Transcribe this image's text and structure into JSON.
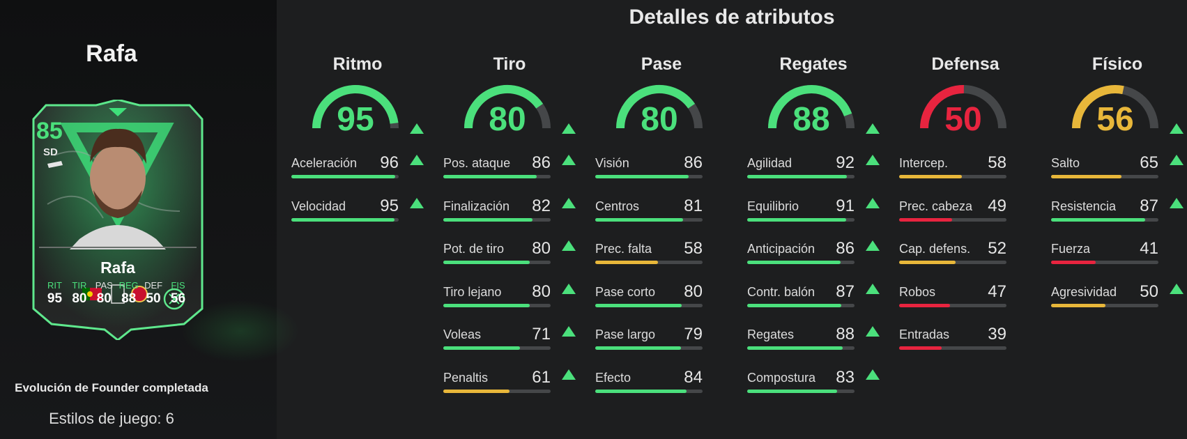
{
  "player": {
    "name": "Rafa",
    "evolution_caption": "Evolución de Founder completada",
    "playstyles_label": "Estilos de juego: 6"
  },
  "card": {
    "rating": "85",
    "position": "SD",
    "name": "Rafa",
    "stats": [
      {
        "label": "RIT",
        "value": "95",
        "boosted": true
      },
      {
        "label": "TIR",
        "value": "80",
        "boosted": true
      },
      {
        "label": "PAS",
        "value": "80",
        "boosted": false
      },
      {
        "label": "REG",
        "value": "88",
        "boosted": true
      },
      {
        "label": "DEF",
        "value": "50",
        "boosted": false
      },
      {
        "label": "FIS",
        "value": "56",
        "boosted": true
      }
    ],
    "badges": [
      "portugal-flag-icon",
      "league-logo-icon",
      "club-crest-icon",
      "evolution-badge-icon"
    ]
  },
  "details": {
    "heading": "Detalles de atributos",
    "categories": [
      {
        "title": "Ritmo",
        "value": 95,
        "boosted": true,
        "color": "#4be07c",
        "attributes": [
          {
            "label": "Aceleración",
            "value": 96,
            "boosted": true
          },
          {
            "label": "Velocidad",
            "value": 95,
            "boosted": true
          }
        ]
      },
      {
        "title": "Tiro",
        "value": 80,
        "boosted": true,
        "color": "#4be07c",
        "attributes": [
          {
            "label": "Pos. ataque",
            "value": 86,
            "boosted": true
          },
          {
            "label": "Finalización",
            "value": 82,
            "boosted": true
          },
          {
            "label": "Pot. de tiro",
            "value": 80,
            "boosted": true
          },
          {
            "label": "Tiro lejano",
            "value": 80,
            "boosted": true
          },
          {
            "label": "Voleas",
            "value": 71,
            "boosted": true
          },
          {
            "label": "Penaltis",
            "value": 61,
            "boosted": true
          }
        ]
      },
      {
        "title": "Pase",
        "value": 80,
        "boosted": false,
        "color": "#4be07c",
        "attributes": [
          {
            "label": "Visión",
            "value": 86,
            "boosted": false
          },
          {
            "label": "Centros",
            "value": 81,
            "boosted": false
          },
          {
            "label": "Prec. falta",
            "value": 58,
            "boosted": false
          },
          {
            "label": "Pase corto",
            "value": 80,
            "boosted": false
          },
          {
            "label": "Pase largo",
            "value": 79,
            "boosted": false
          },
          {
            "label": "Efecto",
            "value": 84,
            "boosted": false
          }
        ]
      },
      {
        "title": "Regates",
        "value": 88,
        "boosted": true,
        "color": "#4be07c",
        "attributes": [
          {
            "label": "Agilidad",
            "value": 92,
            "boosted": true
          },
          {
            "label": "Equilibrio",
            "value": 91,
            "boosted": true
          },
          {
            "label": "Anticipación",
            "value": 86,
            "boosted": true
          },
          {
            "label": "Contr. balón",
            "value": 87,
            "boosted": true
          },
          {
            "label": "Regates",
            "value": 88,
            "boosted": true
          },
          {
            "label": "Compostura",
            "value": 83,
            "boosted": true
          }
        ]
      },
      {
        "title": "Defensa",
        "value": 50,
        "boosted": false,
        "color": "#e8243f",
        "attributes": [
          {
            "label": "Intercep.",
            "value": 58,
            "boosted": false
          },
          {
            "label": "Prec. cabeza",
            "value": 49,
            "boosted": false
          },
          {
            "label": "Cap. defens.",
            "value": 52,
            "boosted": false
          },
          {
            "label": "Robos",
            "value": 47,
            "boosted": false
          },
          {
            "label": "Entradas",
            "value": 39,
            "boosted": false
          }
        ]
      },
      {
        "title": "Físico",
        "value": 56,
        "boosted": true,
        "color": "#e8b73a",
        "attributes": [
          {
            "label": "Salto",
            "value": 65,
            "boosted": true
          },
          {
            "label": "Resistencia",
            "value": 87,
            "boosted": true
          },
          {
            "label": "Fuerza",
            "value": 41,
            "boosted": false
          },
          {
            "label": "Agresividad",
            "value": 50,
            "boosted": true
          }
        ]
      }
    ]
  },
  "colors": {
    "high": "#4be07c",
    "mid": "#e8b73a",
    "low": "#e8243f",
    "track": "#454749",
    "background": "#1d1e1f"
  }
}
